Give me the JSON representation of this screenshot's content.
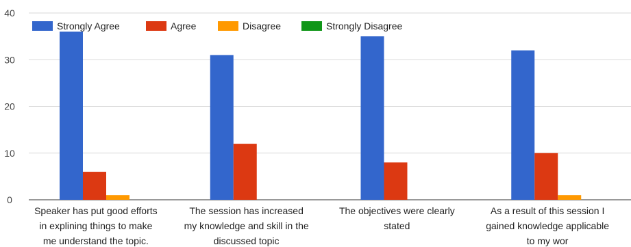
{
  "chart_data": {
    "type": "bar",
    "title": "",
    "xlabel": "",
    "ylabel": "",
    "ylim": [
      0,
      40
    ],
    "yticks": [
      0,
      10,
      20,
      30,
      40
    ],
    "grid": true,
    "legend_position": "top-left",
    "categories": [
      [
        "Speaker has put good efforts",
        "in explining things to make",
        "me understand the topic."
      ],
      [
        "The session has increased",
        "my knowledge and skill in the",
        "discussed topic"
      ],
      [
        "The objectives were clearly",
        "stated"
      ],
      [
        "As a result of this session I",
        "gained knowledge applicable",
        "to my wor"
      ]
    ],
    "series": [
      {
        "name": "Strongly Agree",
        "color": "#3366cc",
        "values": [
          36,
          31,
          35,
          32
        ]
      },
      {
        "name": "Agree",
        "color": "#dc3912",
        "values": [
          6,
          12,
          8,
          10
        ]
      },
      {
        "name": "Disagree",
        "color": "#ff9900",
        "values": [
          1,
          0,
          0,
          1
        ]
      },
      {
        "name": "Strongly Disagree",
        "color": "#109618",
        "values": [
          0,
          0,
          0,
          0
        ]
      }
    ]
  }
}
